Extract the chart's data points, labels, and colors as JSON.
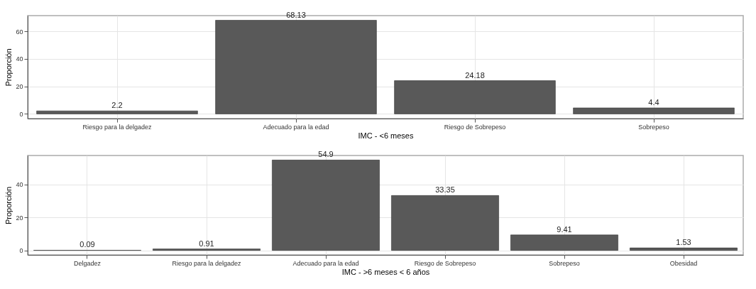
{
  "chart_data": [
    {
      "type": "bar",
      "categories": [
        "Riesgo para la delgadez",
        "Adecuado para la edad",
        "Riesgo de Sobrepeso",
        "Sobrepeso"
      ],
      "values": [
        2.2,
        68.13,
        24.18,
        4.4
      ],
      "color": "#595959",
      "xlabel": "IMC - <6 meses",
      "ylabel": "Proporción",
      "ylim": [
        -3.4,
        71.5
      ],
      "yticks": [
        0,
        20,
        40,
        60
      ],
      "grid": true,
      "data_labels": true
    },
    {
      "type": "bar",
      "categories": [
        "Delgadez",
        "Riesgo para la delgadez",
        "Adecuado para la edad",
        "Riesgo de Sobrepeso",
        "Sobrepeso",
        "Obesidad"
      ],
      "values": [
        0.09,
        0.91,
        54.9,
        33.35,
        9.41,
        1.53
      ],
      "color": "#595959",
      "xlabel": "IMC - >6 meses < 6 años",
      "ylabel": "Proporción",
      "ylim": [
        -2.75,
        57.65
      ],
      "yticks": [
        0,
        20,
        40
      ],
      "grid": true,
      "data_labels": true
    }
  ]
}
